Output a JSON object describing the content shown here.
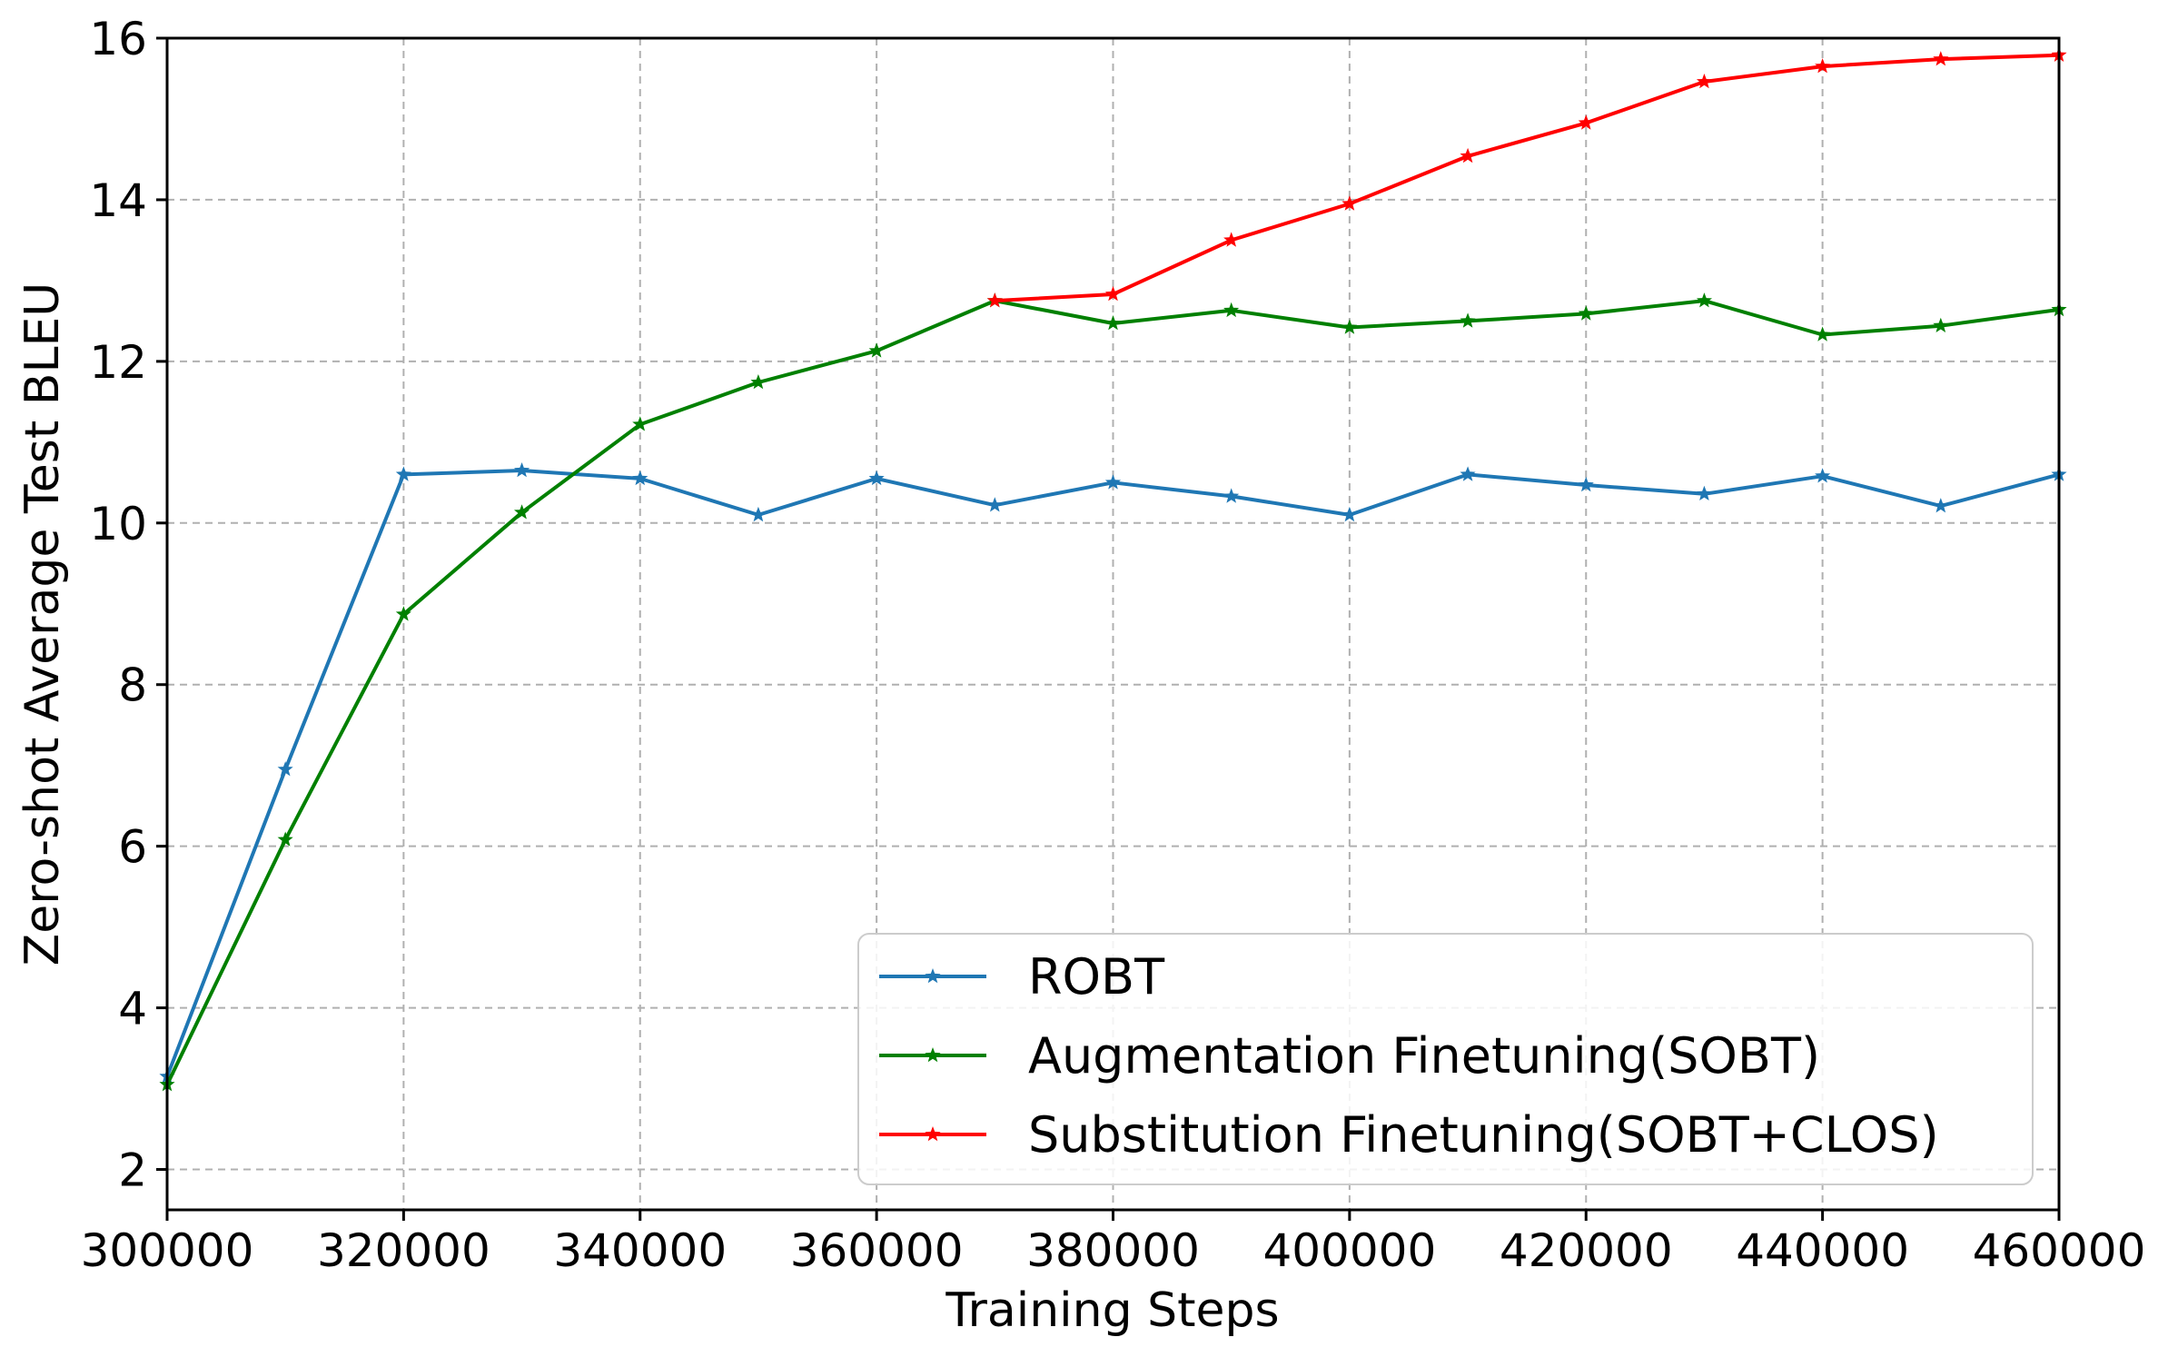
{
  "chart_data": {
    "type": "line",
    "title": "",
    "xlabel": "Training Steps",
    "ylabel": "Zero-shot Average Test BLEU",
    "xlim": [
      300000,
      460000
    ],
    "ylim": [
      1.5,
      16
    ],
    "xticks": [
      300000,
      320000,
      340000,
      360000,
      380000,
      400000,
      420000,
      440000,
      460000
    ],
    "yticks": [
      2,
      4,
      6,
      8,
      10,
      12,
      14,
      16
    ],
    "grid": true,
    "legend_position": "lower-right",
    "marker": "star",
    "series": [
      {
        "name": "ROBT",
        "color": "#1f77b4",
        "x": [
          300000,
          310000,
          320000,
          330000,
          340000,
          350000,
          360000,
          370000,
          380000,
          390000,
          400000,
          410000,
          420000,
          430000,
          440000,
          450000,
          460000
        ],
        "values": [
          3.15,
          6.95,
          10.6,
          10.65,
          10.55,
          10.1,
          10.55,
          10.22,
          10.5,
          10.33,
          10.1,
          10.6,
          10.47,
          10.36,
          10.58,
          10.21,
          10.6
        ]
      },
      {
        "name": "Augmentation Finetuning(SOBT)",
        "color": "#008000",
        "x": [
          300000,
          310000,
          320000,
          330000,
          340000,
          350000,
          360000,
          370000,
          380000,
          390000,
          400000,
          410000,
          420000,
          430000,
          440000,
          450000,
          460000
        ],
        "values": [
          3.05,
          6.08,
          8.87,
          10.13,
          11.22,
          11.74,
          12.13,
          12.75,
          12.47,
          12.63,
          12.42,
          12.5,
          12.59,
          12.75,
          12.33,
          12.44,
          12.64
        ]
      },
      {
        "name": "Substitution Finetuning(SOBT+CLOS)",
        "color": "#ff0000",
        "x": [
          370000,
          380000,
          390000,
          400000,
          410000,
          420000,
          430000,
          440000,
          450000,
          460000
        ],
        "values": [
          12.75,
          12.83,
          13.5,
          13.95,
          14.54,
          14.95,
          15.46,
          15.65,
          15.74,
          15.79
        ]
      }
    ]
  }
}
